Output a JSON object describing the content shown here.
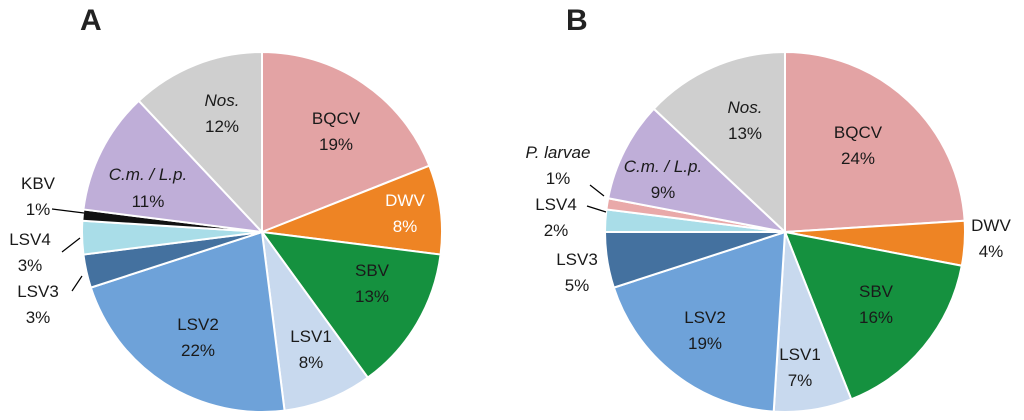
{
  "colors": {
    "BQCV": "#e3a3a4",
    "DWV": "#ee8424",
    "SBV": "#15913f",
    "LSV1": "#c8d9ee",
    "LSV2": "#6ea2d9",
    "LSV3": "#44719f",
    "LSV4": "#a9dde8",
    "KBV": "#111111",
    "CmLp": "#bfaed8",
    "Nos": "#cfcfcf",
    "Plarvae": "#e9a9a9"
  },
  "chart_data": [
    {
      "type": "pie",
      "title": "A",
      "slices": [
        {
          "key": "BQCV",
          "name": "BQCV",
          "value": 19,
          "pct": "19%",
          "italic": false,
          "color_key": "BQCV"
        },
        {
          "key": "DWV",
          "name": "DWV",
          "value": 8,
          "pct": "8%",
          "italic": false,
          "color_key": "DWV"
        },
        {
          "key": "SBV",
          "name": "SBV",
          "value": 13,
          "pct": "13%",
          "italic": false,
          "color_key": "SBV"
        },
        {
          "key": "LSV1",
          "name": "LSV1",
          "value": 8,
          "pct": "8%",
          "italic": false,
          "color_key": "LSV1"
        },
        {
          "key": "LSV2",
          "name": "LSV2",
          "value": 22,
          "pct": "22%",
          "italic": false,
          "color_key": "LSV2"
        },
        {
          "key": "LSV3",
          "name": "LSV3",
          "value": 3,
          "pct": "3%",
          "italic": false,
          "color_key": "LSV3"
        },
        {
          "key": "LSV4",
          "name": "LSV4",
          "value": 3,
          "pct": "3%",
          "italic": false,
          "color_key": "LSV4"
        },
        {
          "key": "KBV",
          "name": "KBV",
          "value": 1,
          "pct": "1%",
          "italic": false,
          "color_key": "KBV"
        },
        {
          "key": "CmLp",
          "name": "C.m. / L.p.",
          "value": 11,
          "pct": "11%",
          "italic": true,
          "color_key": "CmLp"
        },
        {
          "key": "Nos",
          "name": "Nos.",
          "value": 12,
          "pct": "12%",
          "italic": true,
          "color_key": "Nos"
        }
      ]
    },
    {
      "type": "pie",
      "title": "B",
      "slices": [
        {
          "key": "BQCV",
          "name": "BQCV",
          "value": 24,
          "pct": "24%",
          "italic": false,
          "color_key": "BQCV"
        },
        {
          "key": "DWV",
          "name": "DWV",
          "value": 4,
          "pct": "4%",
          "italic": false,
          "color_key": "DWV"
        },
        {
          "key": "SBV",
          "name": "SBV",
          "value": 16,
          "pct": "16%",
          "italic": false,
          "color_key": "SBV"
        },
        {
          "key": "LSV1",
          "name": "LSV1",
          "value": 7,
          "pct": "7%",
          "italic": false,
          "color_key": "LSV1"
        },
        {
          "key": "LSV2",
          "name": "LSV2",
          "value": 19,
          "pct": "19%",
          "italic": false,
          "color_key": "LSV2"
        },
        {
          "key": "LSV3",
          "name": "LSV3",
          "value": 5,
          "pct": "5%",
          "italic": false,
          "color_key": "LSV3"
        },
        {
          "key": "LSV4",
          "name": "LSV4",
          "value": 2,
          "pct": "2%",
          "italic": false,
          "color_key": "LSV4"
        },
        {
          "key": "Plarvae",
          "name": "P. larvae",
          "value": 1,
          "pct": "1%",
          "italic": true,
          "color_key": "Plarvae"
        },
        {
          "key": "CmLp",
          "name": "C.m. / L.p.",
          "value": 9,
          "pct": "9%",
          "italic": true,
          "color_key": "CmLp"
        },
        {
          "key": "Nos",
          "name": "Nos.",
          "value": 13,
          "pct": "13%",
          "italic": true,
          "color_key": "Nos"
        }
      ]
    }
  ]
}
